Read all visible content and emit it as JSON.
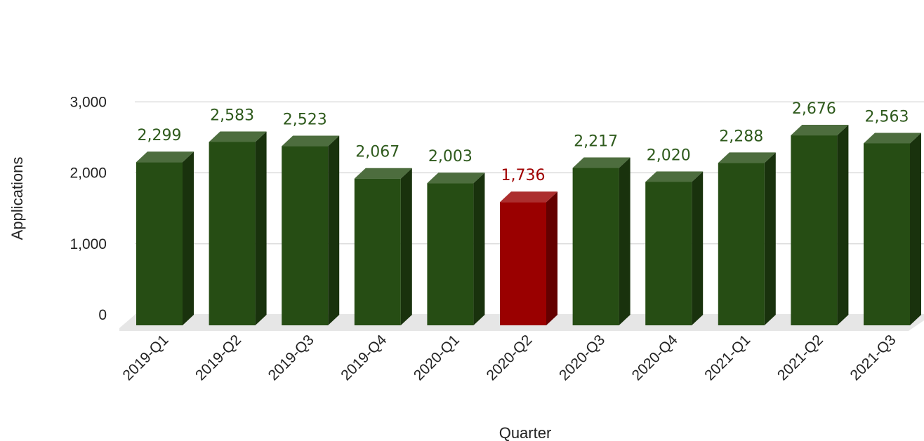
{
  "colors": {
    "bar": "#264d14",
    "highlight": "#9a0000",
    "label": "#2e5a1c",
    "highlight_label": "#a00000",
    "grid": "#d6d6d6",
    "floor": "#e6e6e6"
  },
  "chart_data": {
    "type": "bar",
    "style": "3d",
    "title": "",
    "xlabel": "Quarter",
    "ylabel": "Applications",
    "ylim": [
      0,
      3000
    ],
    "yticks": [
      "0",
      "1,000",
      "2,000",
      "3,000"
    ],
    "grid": true,
    "legend": "none",
    "categories": [
      "2019-Q1",
      "2019-Q2",
      "2019-Q3",
      "2019-Q4",
      "2020-Q1",
      "2020-Q2",
      "2020-Q3",
      "2020-Q4",
      "2021-Q1",
      "2021-Q2",
      "2021-Q3"
    ],
    "values": [
      2299,
      2583,
      2523,
      2067,
      2003,
      1736,
      2217,
      2020,
      2288,
      2676,
      2563
    ],
    "labels": [
      "2,299",
      "2,583",
      "2,523",
      "2,067",
      "2,003",
      "1,736",
      "2,217",
      "2,020",
      "2,288",
      "2,676",
      "2,563"
    ],
    "highlight_index": 5
  }
}
